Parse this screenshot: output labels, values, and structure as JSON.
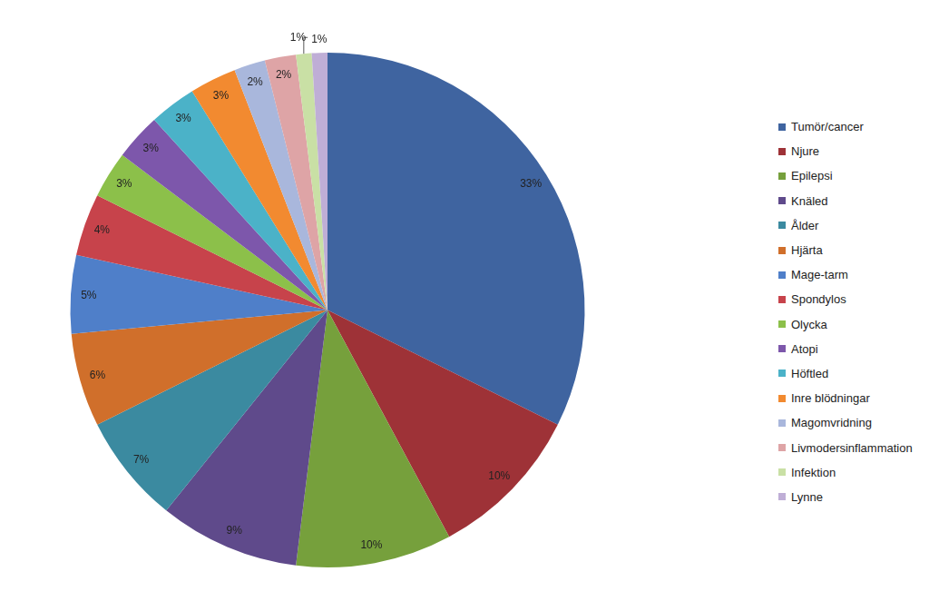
{
  "chart_data": {
    "type": "pie",
    "categories": [
      "Tumör/cancer",
      "Njure",
      "Epilepsi",
      "Knäled",
      "Ålder",
      "Hjärta",
      "Mage-tarm",
      "Spondylos",
      "Olycka",
      "Atopi",
      "Höftled",
      "Inre blödningar",
      "Magomvridning",
      "Livmodersinflammation",
      "Infektion",
      "Lynne"
    ],
    "values": [
      33,
      10,
      10,
      9,
      7,
      6,
      5,
      4,
      3,
      3,
      3,
      3,
      2,
      2,
      1,
      1
    ],
    "value_labels": [
      "33%",
      "10%",
      "10%",
      "9%",
      "7%",
      "6%",
      "5%",
      "4%",
      "3%",
      "3%",
      "3%",
      "3%",
      "2%",
      "2%",
      "1%",
      "1%"
    ],
    "colors": [
      "#3f64a0",
      "#9e3237",
      "#76a03c",
      "#5f4a8b",
      "#3b8aa0",
      "#d06f2b",
      "#4f7fc9",
      "#c7434b",
      "#8cc04a",
      "#7d57ab",
      "#4bb2c8",
      "#f28a30",
      "#a9b7dc",
      "#dea4a6",
      "#c9e0a5",
      "#bfaed6"
    ],
    "data_labels": true,
    "legend": "right"
  }
}
